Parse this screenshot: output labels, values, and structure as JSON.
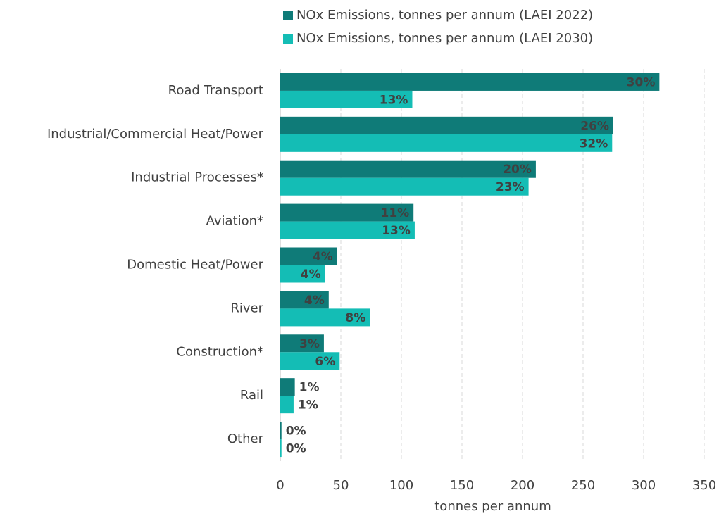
{
  "chart_data": {
    "type": "hbar",
    "categories": [
      "Road Transport",
      "Industrial/Commercial Heat/Power",
      "Industrial Processes*",
      "Aviation*",
      "Domestic Heat/Power",
      "River",
      "Construction*",
      "Rail",
      "Other"
    ],
    "series": [
      {
        "name": "NOx Emissions, tonnes per annum (LAEI 2022)",
        "color": "#0f7b78",
        "values": [
          313,
          275,
          211,
          110,
          47,
          40,
          36,
          12,
          1
        ],
        "share_labels": [
          "30%",
          "26%",
          "20%",
          "11%",
          "4%",
          "4%",
          "3%",
          "1%",
          "0%"
        ]
      },
      {
        "name": "NOx Emissions, tonnes per annum (LAEI 2030)",
        "color": "#14bdb5",
        "values": [
          109,
          274,
          205,
          111,
          37,
          74,
          49,
          11,
          1
        ],
        "share_labels": [
          "13%",
          "32%",
          "23%",
          "13%",
          "4%",
          "8%",
          "6%",
          "1%",
          "0%"
        ]
      }
    ],
    "xlabel": "tonnes per annum",
    "xlim": [
      0,
      350
    ],
    "xticks": [
      0,
      50,
      100,
      150,
      200,
      250,
      300,
      350
    ],
    "grid": true,
    "legend": "top"
  }
}
